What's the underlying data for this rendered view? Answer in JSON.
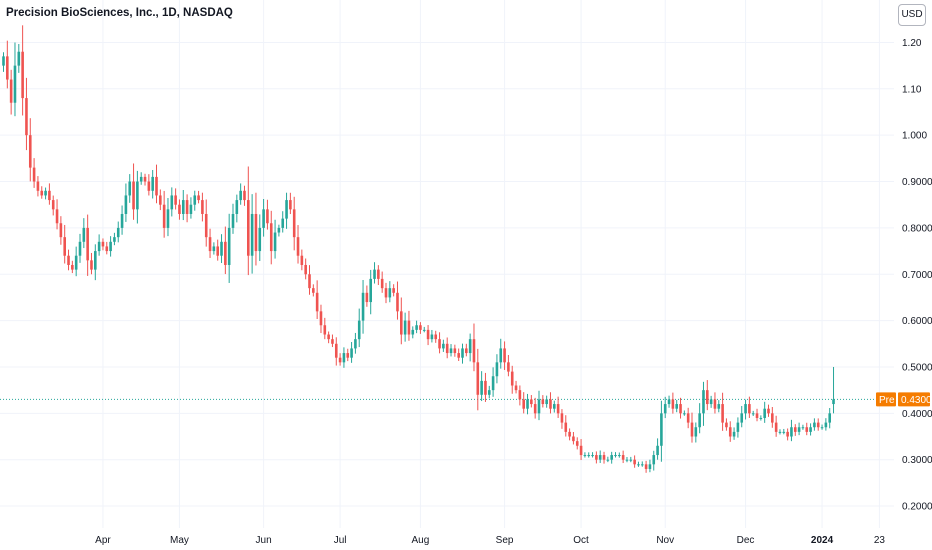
{
  "header": {
    "title": "Precision BioSciences, Inc., 1D, NASDAQ",
    "currency": "USD"
  },
  "price_line": {
    "badge_label": "Pre",
    "badge_value": "0.4300",
    "value": 0.43
  },
  "colors": {
    "up": "#26a69a",
    "down": "#ef5350",
    "pre_badge": "#f57c00",
    "grid": "#f0f3fa",
    "price_line": "#26a69a"
  },
  "chart_data": {
    "type": "candlestick",
    "title": "Precision BioSciences, Inc., 1D, NASDAQ",
    "xlabel": "",
    "ylabel": "",
    "ylim": [
      0.18,
      1.27
    ],
    "y_ticks": [
      "0.2000",
      "0.3000",
      "0.4000",
      "0.5000",
      "0.6000",
      "0.7000",
      "0.8000",
      "0.9000",
      "1.000",
      "1.10",
      "1.20"
    ],
    "x_ticks": [
      {
        "label": "Apr",
        "day": 26
      },
      {
        "label": "May",
        "day": 46
      },
      {
        "label": "Jun",
        "day": 68
      },
      {
        "label": "Jul",
        "day": 88
      },
      {
        "label": "Aug",
        "day": 109
      },
      {
        "label": "Sep",
        "day": 131
      },
      {
        "label": "Oct",
        "day": 151
      },
      {
        "label": "Nov",
        "day": 173
      },
      {
        "label": "Dec",
        "day": 194
      },
      {
        "label": "2024",
        "day": 214,
        "bold": true
      },
      {
        "label": "23",
        "day": 229
      }
    ],
    "grid": true,
    "close": [
      1.17,
      1.12,
      1.07,
      1.15,
      1.18,
      1.08,
      1.0,
      0.93,
      0.9,
      0.88,
      0.87,
      0.88,
      0.86,
      0.84,
      0.81,
      0.78,
      0.74,
      0.72,
      0.71,
      0.74,
      0.77,
      0.8,
      0.73,
      0.71,
      0.75,
      0.77,
      0.76,
      0.75,
      0.77,
      0.78,
      0.8,
      0.83,
      0.87,
      0.9,
      0.84,
      0.9,
      0.91,
      0.9,
      0.88,
      0.91,
      0.87,
      0.85,
      0.8,
      0.84,
      0.87,
      0.85,
      0.83,
      0.86,
      0.83,
      0.85,
      0.87,
      0.86,
      0.83,
      0.78,
      0.75,
      0.76,
      0.74,
      0.77,
      0.72,
      0.8,
      0.83,
      0.86,
      0.88,
      0.86,
      0.74,
      0.83,
      0.75,
      0.8,
      0.84,
      0.81,
      0.75,
      0.79,
      0.8,
      0.82,
      0.86,
      0.84,
      0.78,
      0.74,
      0.72,
      0.7,
      0.67,
      0.66,
      0.62,
      0.59,
      0.57,
      0.56,
      0.55,
      0.52,
      0.51,
      0.53,
      0.52,
      0.54,
      0.56,
      0.6,
      0.66,
      0.64,
      0.69,
      0.71,
      0.69,
      0.67,
      0.65,
      0.67,
      0.66,
      0.62,
      0.57,
      0.6,
      0.57,
      0.58,
      0.59,
      0.58,
      0.58,
      0.56,
      0.57,
      0.56,
      0.54,
      0.55,
      0.53,
      0.54,
      0.53,
      0.52,
      0.54,
      0.53,
      0.56,
      0.51,
      0.44,
      0.47,
      0.44,
      0.45,
      0.48,
      0.51,
      0.54,
      0.51,
      0.49,
      0.46,
      0.45,
      0.43,
      0.41,
      0.43,
      0.42,
      0.4,
      0.43,
      0.42,
      0.43,
      0.41,
      0.42,
      0.4,
      0.38,
      0.36,
      0.35,
      0.34,
      0.33,
      0.31,
      0.31,
      0.31,
      0.31,
      0.3,
      0.31,
      0.3,
      0.3,
      0.31,
      0.31,
      0.31,
      0.3,
      0.3,
      0.3,
      0.29,
      0.29,
      0.29,
      0.28,
      0.29,
      0.31,
      0.33,
      0.4,
      0.42,
      0.43,
      0.41,
      0.42,
      0.4,
      0.4,
      0.38,
      0.35,
      0.37,
      0.4,
      0.45,
      0.42,
      0.43,
      0.41,
      0.42,
      0.38,
      0.37,
      0.35,
      0.36,
      0.38,
      0.4,
      0.42,
      0.4,
      0.4,
      0.39,
      0.39,
      0.41,
      0.4,
      0.38,
      0.36,
      0.36,
      0.36,
      0.35,
      0.37,
      0.36,
      0.37,
      0.37,
      0.36,
      0.37,
      0.38,
      0.37,
      0.37,
      0.38,
      0.4
    ],
    "last": {
      "open": 0.42,
      "high": 0.5,
      "low": 0.4,
      "close": 0.43
    }
  }
}
